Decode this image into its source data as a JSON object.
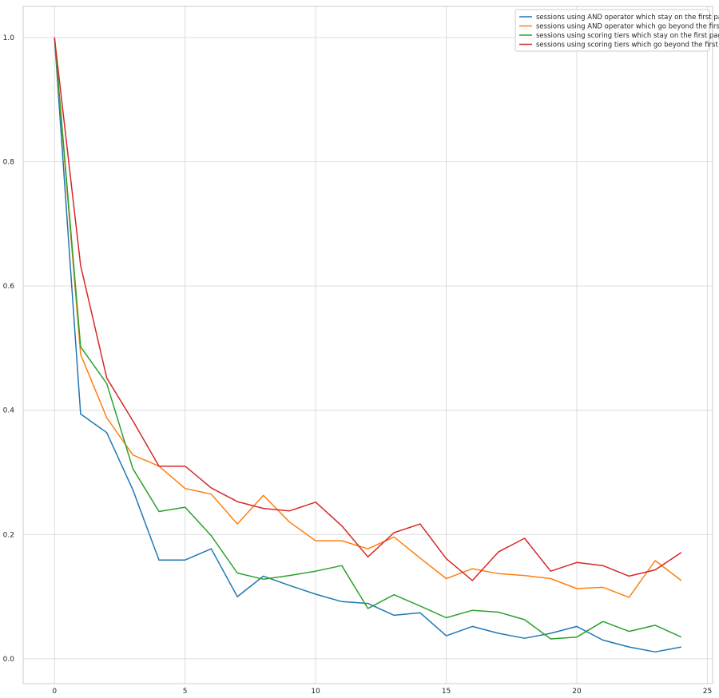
{
  "chart_data": {
    "type": "line",
    "title": "",
    "xlabel": "",
    "ylabel": "",
    "xlim": [
      -1.2,
      25.2
    ],
    "ylim": [
      -0.04,
      1.05
    ],
    "xticks": [
      0,
      5,
      10,
      15,
      20,
      25
    ],
    "xtick_labels": [
      "0",
      "5",
      "10",
      "15",
      "20",
      "25"
    ],
    "yticks": [
      0.0,
      0.2,
      0.4,
      0.6,
      0.8,
      1.0
    ],
    "ytick_labels": [
      "0.0",
      "0.2",
      "0.4",
      "0.6",
      "0.8",
      "1.0"
    ],
    "grid": true,
    "legend_position": "top-right",
    "x": [
      0,
      1,
      2,
      3,
      4,
      5,
      6,
      7,
      8,
      9,
      10,
      11,
      12,
      13,
      14,
      15,
      16,
      17,
      18,
      19,
      20,
      21,
      22,
      23,
      24
    ],
    "series": [
      {
        "name": "sessions using AND operator which stay on the first page",
        "color": "#1f77b4",
        "values": [
          1.0,
          0.394,
          0.364,
          0.272,
          0.159,
          0.159,
          0.177,
          0.1,
          0.133,
          0.118,
          0.104,
          0.092,
          0.089,
          0.07,
          0.074,
          0.037,
          0.052,
          0.041,
          0.033,
          0.041,
          0.052,
          0.03,
          0.019,
          0.011,
          0.019
        ]
      },
      {
        "name": "sessions using AND operator which go beyond the first page",
        "color": "#ff7f0e",
        "values": [
          1.0,
          0.49,
          0.388,
          0.328,
          0.31,
          0.274,
          0.265,
          0.217,
          0.263,
          0.22,
          0.19,
          0.19,
          0.177,
          0.196,
          0.162,
          0.129,
          0.145,
          0.137,
          0.134,
          0.129,
          0.113,
          0.115,
          0.099,
          0.158,
          0.126
        ]
      },
      {
        "name": "sessions using scoring tiers which stay on the first page",
        "color": "#2ca02c",
        "values": [
          1.0,
          0.502,
          0.443,
          0.306,
          0.237,
          0.244,
          0.198,
          0.138,
          0.128,
          0.134,
          0.141,
          0.15,
          0.081,
          0.103,
          0.085,
          0.066,
          0.078,
          0.075,
          0.063,
          0.032,
          0.035,
          0.06,
          0.044,
          0.054,
          0.035
        ]
      },
      {
        "name": "sessions using scoring tiers which go beyond the first page",
        "color": "#d62728",
        "values": [
          1.0,
          0.633,
          0.452,
          0.383,
          0.31,
          0.31,
          0.275,
          0.253,
          0.242,
          0.238,
          0.252,
          0.214,
          0.164,
          0.203,
          0.217,
          0.161,
          0.126,
          0.172,
          0.194,
          0.141,
          0.155,
          0.15,
          0.133,
          0.143,
          0.171
        ]
      }
    ]
  }
}
